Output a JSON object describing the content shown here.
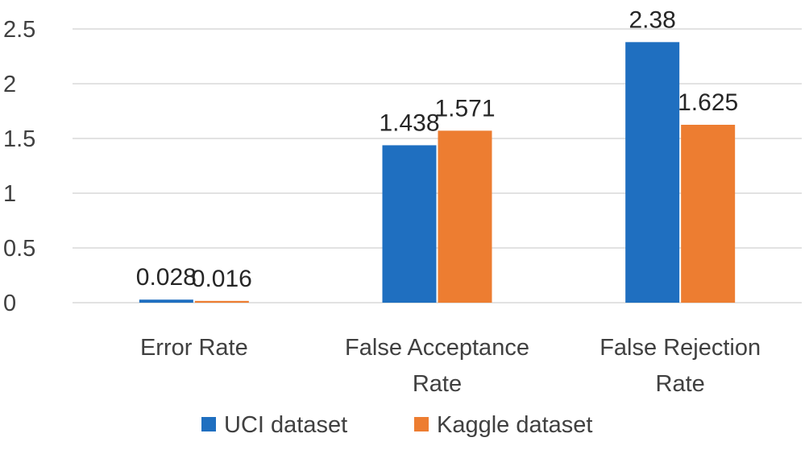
{
  "chart_data": {
    "type": "bar",
    "title": "",
    "xlabel": "",
    "ylabel": "",
    "categories": [
      [
        "Error Rate"
      ],
      [
        "False Acceptance",
        "Rate"
      ],
      [
        "False Rejection",
        "Rate"
      ]
    ],
    "series": [
      {
        "name": "UCI dataset",
        "color": "#1f6fc0",
        "values": [
          0.028,
          1.438,
          2.38
        ],
        "labels": [
          "0.028",
          "1.438",
          "2.38"
        ]
      },
      {
        "name": "Kaggle dataset",
        "color": "#ed7d31",
        "values": [
          0.016,
          1.571,
          1.625
        ],
        "labels": [
          "0.016",
          "1.571",
          "1.625"
        ]
      }
    ],
    "ylim": [
      0,
      2.5
    ],
    "yticks": [
      "0",
      "0.5",
      "1",
      "1.5",
      "2",
      "2.5"
    ],
    "grid": true,
    "legend": "bottom"
  }
}
